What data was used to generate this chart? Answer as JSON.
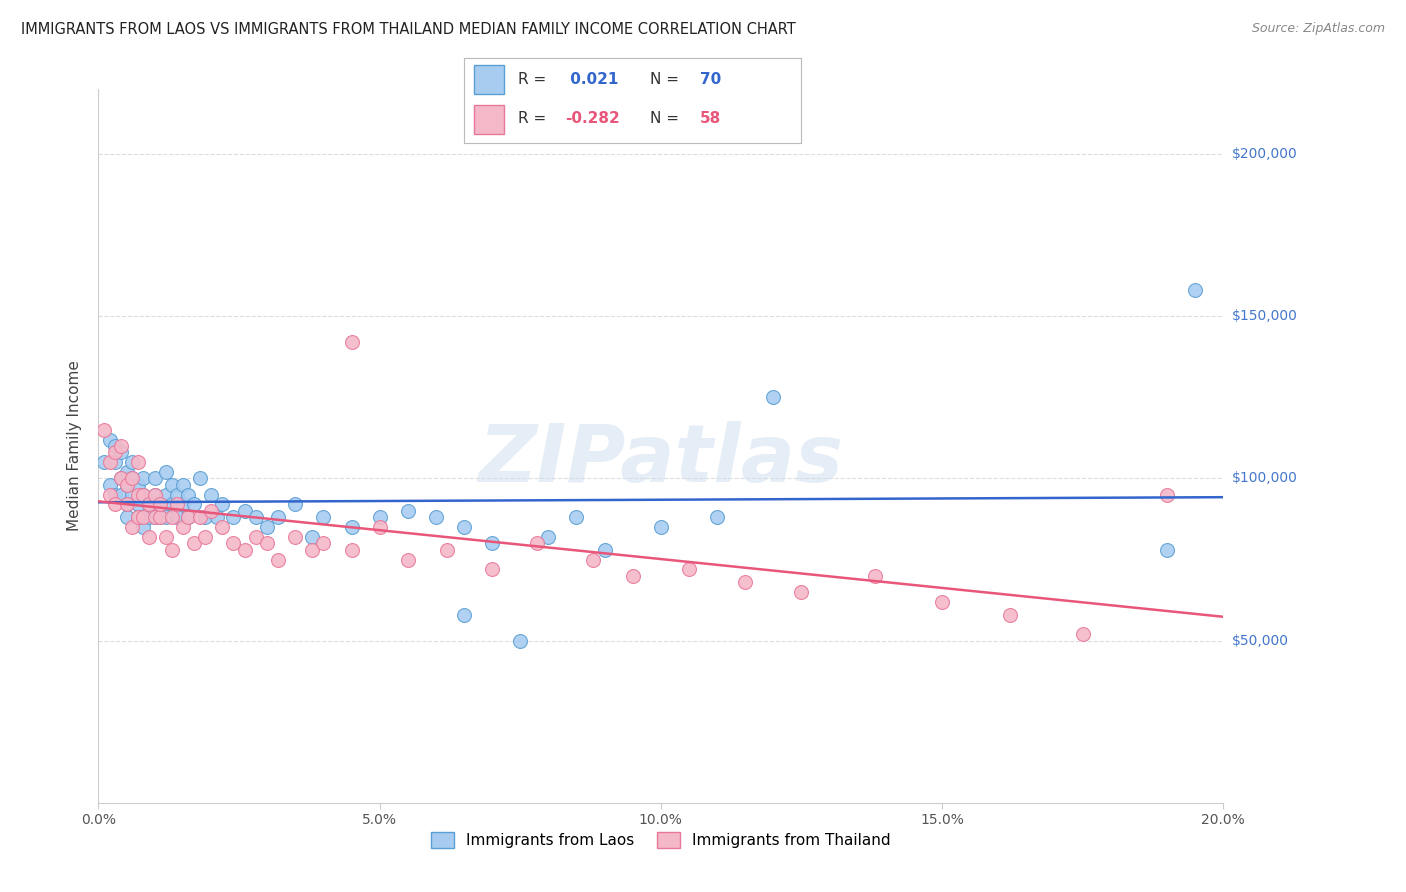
{
  "title": "IMMIGRANTS FROM LAOS VS IMMIGRANTS FROM THAILAND MEDIAN FAMILY INCOME CORRELATION CHART",
  "source": "Source: ZipAtlas.com",
  "ylabel": "Median Family Income",
  "xlim": [
    0.0,
    0.2
  ],
  "ylim": [
    0,
    220000
  ],
  "xtick_labels": [
    "0.0%",
    "5.0%",
    "10.0%",
    "15.0%",
    "20.0%"
  ],
  "xtick_vals": [
    0.0,
    0.05,
    0.1,
    0.15,
    0.2
  ],
  "ytick_labels": [
    "$50,000",
    "$100,000",
    "$150,000",
    "$200,000"
  ],
  "ytick_vals": [
    50000,
    100000,
    150000,
    200000
  ],
  "legend_labels": [
    "Immigrants from Laos",
    "Immigrants from Thailand"
  ],
  "laos_color": "#A8CCF0",
  "thailand_color": "#F5B8C8",
  "laos_edge_color": "#5A9FD4",
  "thailand_edge_color": "#E8789A",
  "laos_line_color": "#3366CC",
  "thailand_line_color": "#E8567A",
  "laos_R": 0.021,
  "laos_N": 70,
  "thailand_R": -0.282,
  "thailand_N": 58,
  "background_color": "#FFFFFF",
  "grid_color": "#DDDDDD",
  "watermark": "ZIPatlas",
  "right_label_color": "#4477CC",
  "laos_x": [
    0.001,
    0.002,
    0.002,
    0.003,
    0.003,
    0.003,
    0.004,
    0.004,
    0.004,
    0.005,
    0.005,
    0.005,
    0.005,
    0.006,
    0.006,
    0.006,
    0.007,
    0.007,
    0.007,
    0.008,
    0.008,
    0.008,
    0.009,
    0.009,
    0.01,
    0.01,
    0.01,
    0.011,
    0.011,
    0.012,
    0.012,
    0.012,
    0.013,
    0.013,
    0.014,
    0.014,
    0.015,
    0.015,
    0.016,
    0.016,
    0.017,
    0.018,
    0.019,
    0.02,
    0.021,
    0.022,
    0.024,
    0.026,
    0.028,
    0.03,
    0.032,
    0.035,
    0.038,
    0.04,
    0.045,
    0.05,
    0.055,
    0.06,
    0.065,
    0.07,
    0.08,
    0.085,
    0.09,
    0.1,
    0.11,
    0.12,
    0.065,
    0.075,
    0.19,
    0.195
  ],
  "laos_y": [
    105000,
    98000,
    112000,
    95000,
    105000,
    110000,
    100000,
    95000,
    108000,
    92000,
    98000,
    102000,
    88000,
    95000,
    100000,
    105000,
    92000,
    98000,
    88000,
    95000,
    100000,
    85000,
    92000,
    88000,
    95000,
    88000,
    100000,
    92000,
    88000,
    95000,
    88000,
    102000,
    92000,
    98000,
    88000,
    95000,
    92000,
    98000,
    88000,
    95000,
    92000,
    100000,
    88000,
    95000,
    88000,
    92000,
    88000,
    90000,
    88000,
    85000,
    88000,
    92000,
    82000,
    88000,
    85000,
    88000,
    90000,
    88000,
    85000,
    80000,
    82000,
    88000,
    78000,
    85000,
    88000,
    125000,
    58000,
    50000,
    78000,
    158000
  ],
  "thailand_x": [
    0.001,
    0.002,
    0.002,
    0.003,
    0.003,
    0.004,
    0.004,
    0.005,
    0.005,
    0.006,
    0.006,
    0.007,
    0.007,
    0.007,
    0.008,
    0.008,
    0.009,
    0.009,
    0.01,
    0.01,
    0.011,
    0.011,
    0.012,
    0.013,
    0.013,
    0.014,
    0.015,
    0.016,
    0.017,
    0.018,
    0.019,
    0.02,
    0.022,
    0.024,
    0.026,
    0.028,
    0.03,
    0.032,
    0.035,
    0.038,
    0.04,
    0.045,
    0.05,
    0.055,
    0.062,
    0.07,
    0.078,
    0.088,
    0.095,
    0.105,
    0.115,
    0.125,
    0.138,
    0.15,
    0.162,
    0.175,
    0.19,
    0.045
  ],
  "thailand_y": [
    115000,
    105000,
    95000,
    108000,
    92000,
    100000,
    110000,
    92000,
    98000,
    100000,
    85000,
    95000,
    88000,
    105000,
    88000,
    95000,
    92000,
    82000,
    88000,
    95000,
    88000,
    92000,
    82000,
    88000,
    78000,
    92000,
    85000,
    88000,
    80000,
    88000,
    82000,
    90000,
    85000,
    80000,
    78000,
    82000,
    80000,
    75000,
    82000,
    78000,
    80000,
    78000,
    85000,
    75000,
    78000,
    72000,
    80000,
    75000,
    70000,
    72000,
    68000,
    65000,
    70000,
    62000,
    58000,
    52000,
    95000,
    142000
  ]
}
